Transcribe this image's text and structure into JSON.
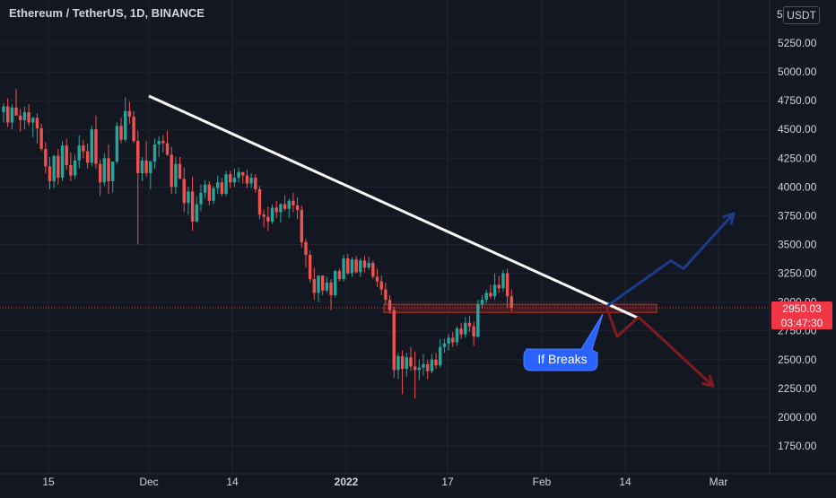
{
  "header": {
    "title": "Ethereum / TetherUS, 1D, BINANCE"
  },
  "price_scale": {
    "currency": "USDT",
    "top_cut_label": "5"
  },
  "last_price": {
    "value": "2950.03",
    "countdown": "03:47:30"
  },
  "annotation": {
    "text": "If Breaks"
  },
  "colors": {
    "bg": "#131722",
    "up": "#26a69a",
    "down": "#ef5350",
    "grid": "#1f2430",
    "text": "#d1d4dc",
    "trendline": "#ffffff",
    "bull_arrow": "#1e3a8a",
    "bear_arrow": "#7f1d1d",
    "callout": "#2962ff",
    "support_zone": "#7a1f1f",
    "price_line": "#f23645"
  },
  "chart_data": {
    "type": "candlestick",
    "title": "Ethereum / TetherUS, 1D, BINANCE",
    "x_axis_labels": [
      "15",
      "Dec",
      "14",
      "2022",
      "17",
      "Feb",
      "14",
      "Mar"
    ],
    "y_axis_labels": [
      "5250.00",
      "5000.00",
      "4750.00",
      "4500.00",
      "4250.00",
      "4000.00",
      "3750.00",
      "3500.00",
      "3250.00",
      "3000.00",
      "2750.00",
      "2500.00",
      "2250.00",
      "2000.00",
      "1750.00"
    ],
    "y_range": [
      1540,
      5480
    ],
    "candles": [
      [
        4650,
        4730,
        4560,
        4700
      ],
      [
        4700,
        4770,
        4520,
        4560
      ],
      [
        4560,
        4720,
        4500,
        4690
      ],
      [
        4690,
        4850,
        4640,
        4620
      ],
      [
        4620,
        4680,
        4480,
        4580
      ],
      [
        4580,
        4700,
        4500,
        4650
      ],
      [
        4650,
        4720,
        4530,
        4560
      ],
      [
        4560,
        4610,
        4430,
        4600
      ],
      [
        4600,
        4640,
        4380,
        4510
      ],
      [
        4510,
        4550,
        4310,
        4330
      ],
      [
        4330,
        4390,
        4120,
        4180
      ],
      [
        4180,
        4260,
        3980,
        4050
      ],
      [
        4050,
        4280,
        3990,
        4270
      ],
      [
        4270,
        4330,
        4020,
        4080
      ],
      [
        4080,
        4400,
        4050,
        4360
      ],
      [
        4360,
        4420,
        4150,
        4190
      ],
      [
        4190,
        4300,
        4050,
        4100
      ],
      [
        4100,
        4280,
        4070,
        4230
      ],
      [
        4230,
        4450,
        4160,
        4360
      ],
      [
        4360,
        4410,
        4250,
        4310
      ],
      [
        4310,
        4380,
        4160,
        4210
      ],
      [
        4210,
        4530,
        4180,
        4500
      ],
      [
        4500,
        4620,
        4160,
        4200
      ],
      [
        4200,
        4240,
        3920,
        4040
      ],
      [
        4040,
        4290,
        4010,
        4250
      ],
      [
        4250,
        4370,
        3940,
        4050
      ],
      [
        4050,
        4220,
        3950,
        4220
      ],
      [
        4220,
        4560,
        4200,
        4530
      ],
      [
        4530,
        4600,
        4380,
        4410
      ],
      [
        4410,
        4780,
        4390,
        4660
      ],
      [
        4660,
        4740,
        4550,
        4610
      ],
      [
        4610,
        4660,
        4380,
        4400
      ],
      [
        4400,
        4490,
        3500,
        4120
      ],
      [
        4120,
        4260,
        4050,
        4230
      ],
      [
        4230,
        4400,
        4090,
        4120
      ],
      [
        4120,
        4230,
        3980,
        4220
      ],
      [
        4220,
        4420,
        4160,
        4370
      ],
      [
        4370,
        4440,
        4260,
        4400
      ],
      [
        4400,
        4450,
        4300,
        4380
      ],
      [
        4380,
        4490,
        4270,
        4280
      ],
      [
        4280,
        4350,
        3940,
        4000
      ],
      [
        4000,
        4260,
        3940,
        4200
      ],
      [
        4200,
        4260,
        4080,
        4070
      ],
      [
        4070,
        4170,
        3780,
        3860
      ],
      [
        3860,
        4000,
        3760,
        3960
      ],
      [
        3960,
        4090,
        3620,
        3700
      ],
      [
        3700,
        3920,
        3690,
        3850
      ],
      [
        3850,
        4020,
        3790,
        3950
      ],
      [
        3950,
        4060,
        3900,
        4020
      ],
      [
        4020,
        4050,
        3840,
        3880
      ],
      [
        3880,
        4010,
        3850,
        3990
      ],
      [
        3990,
        4100,
        3940,
        4040
      ],
      [
        4040,
        4080,
        3920,
        3940
      ],
      [
        3940,
        4140,
        3920,
        4110
      ],
      [
        4110,
        4140,
        3990,
        4040
      ],
      [
        4040,
        4160,
        4000,
        4080
      ],
      [
        4080,
        4170,
        4040,
        4130
      ],
      [
        4130,
        4100,
        4030,
        4100
      ],
      [
        4100,
        4150,
        3990,
        4030
      ],
      [
        4030,
        4120,
        3990,
        4080
      ],
      [
        4080,
        4110,
        3950,
        3980
      ],
      [
        3980,
        4010,
        3720,
        3760
      ],
      [
        3760,
        3800,
        3650,
        3740
      ],
      [
        3740,
        3830,
        3620,
        3700
      ],
      [
        3700,
        3850,
        3680,
        3820
      ],
      [
        3820,
        3880,
        3730,
        3780
      ],
      [
        3780,
        3860,
        3690,
        3850
      ],
      [
        3850,
        3930,
        3790,
        3810
      ],
      [
        3810,
        3900,
        3730,
        3880
      ],
      [
        3880,
        3950,
        3780,
        3840
      ],
      [
        3840,
        3910,
        3720,
        3800
      ],
      [
        3800,
        3840,
        3470,
        3520
      ],
      [
        3520,
        3550,
        3300,
        3410
      ],
      [
        3410,
        3450,
        3170,
        3200
      ],
      [
        3200,
        3300,
        3020,
        3080
      ],
      [
        3080,
        3200,
        3000,
        3230
      ],
      [
        3230,
        3230,
        3060,
        3100
      ],
      [
        3100,
        3220,
        3080,
        3170
      ],
      [
        3170,
        3200,
        2930,
        3060
      ],
      [
        3060,
        3280,
        3040,
        3270
      ],
      [
        3270,
        3290,
        3180,
        3200
      ],
      [
        3200,
        3410,
        3180,
        3380
      ],
      [
        3380,
        3420,
        3240,
        3250
      ],
      [
        3250,
        3390,
        3220,
        3370
      ],
      [
        3370,
        3400,
        3250,
        3260
      ],
      [
        3260,
        3380,
        3220,
        3360
      ],
      [
        3360,
        3400,
        3260,
        3300
      ],
      [
        3300,
        3390,
        3280,
        3340
      ],
      [
        3340,
        3360,
        3200,
        3220
      ],
      [
        3220,
        3290,
        3130,
        3180
      ],
      [
        3180,
        3230,
        3060,
        3110
      ],
      [
        3110,
        3170,
        2980,
        3020
      ],
      [
        3020,
        3060,
        2900,
        2930
      ],
      [
        2930,
        2960,
        2340,
        2410
      ],
      [
        2410,
        2560,
        2330,
        2530
      ],
      [
        2530,
        2580,
        2200,
        2420
      ],
      [
        2420,
        2560,
        2350,
        2520
      ],
      [
        2520,
        2610,
        2400,
        2440
      ],
      [
        2440,
        2570,
        2160,
        2410
      ],
      [
        2410,
        2500,
        2320,
        2430
      ],
      [
        2430,
        2550,
        2360,
        2460
      ],
      [
        2460,
        2500,
        2330,
        2400
      ],
      [
        2400,
        2550,
        2380,
        2500
      ],
      [
        2500,
        2560,
        2420,
        2450
      ],
      [
        2450,
        2680,
        2430,
        2610
      ],
      [
        2610,
        2680,
        2560,
        2640
      ],
      [
        2640,
        2720,
        2580,
        2690
      ],
      [
        2690,
        2740,
        2610,
        2650
      ],
      [
        2650,
        2790,
        2620,
        2770
      ],
      [
        2770,
        2820,
        2680,
        2720
      ],
      [
        2720,
        2870,
        2690,
        2820
      ],
      [
        2820,
        2880,
        2740,
        2790
      ],
      [
        2790,
        2830,
        2620,
        2700
      ],
      [
        2700,
        3020,
        2690,
        2980
      ],
      [
        2980,
        3060,
        2940,
        3020
      ],
      [
        3020,
        3110,
        2990,
        3080
      ],
      [
        3080,
        3150,
        3030,
        3050
      ],
      [
        3050,
        3250,
        3020,
        3150
      ],
      [
        3150,
        3230,
        3080,
        3120
      ],
      [
        3120,
        3280,
        3090,
        3250
      ],
      [
        3250,
        3290,
        2950,
        3050
      ],
      [
        3050,
        3110,
        2920,
        2950
      ]
    ],
    "trendline": {
      "from": {
        "date": "2021-11-30",
        "price": 4790
      },
      "to": {
        "date": "2022-02-13",
        "price": 2860
      }
    },
    "support_zone": {
      "low": 2910,
      "high": 2980
    },
    "projections": {
      "bullish": [
        [
          2960
        ],
        [
          3360
        ],
        [
          3290
        ],
        [
          3770
        ]
      ],
      "bearish": [
        [
          2960
        ],
        [
          2700
        ],
        [
          2870
        ],
        [
          2270
        ]
      ]
    },
    "last_price": 2950.03,
    "grid": true
  }
}
